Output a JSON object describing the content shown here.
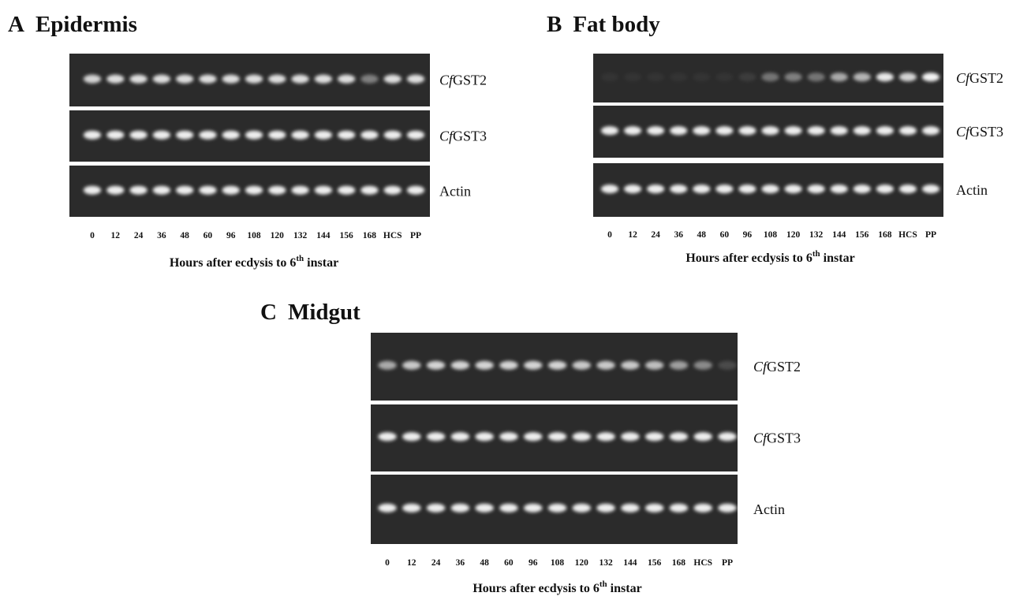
{
  "panels": [
    {
      "letter": "A",
      "title": "Epidermis",
      "rows": [
        {
          "italic": "Cf",
          "rest": "GST2"
        },
        {
          "italic": "Cf",
          "rest": "GST3"
        },
        {
          "italic": "",
          "rest": "Actin"
        }
      ],
      "lanes": [
        "0",
        "12",
        "24",
        "36",
        "48",
        "60",
        "96",
        "108",
        "120",
        "132",
        "144",
        "156",
        "168",
        "HCS",
        "PP"
      ],
      "caption": {
        "before": "Hours after ecdysis to 6",
        "sup": "th",
        "after": " instar"
      }
    },
    {
      "letter": "B",
      "title": "Fat body",
      "rows": [
        {
          "italic": "Cf",
          "rest": "GST2"
        },
        {
          "italic": "Cf",
          "rest": "GST3"
        },
        {
          "italic": "",
          "rest": "Actin"
        }
      ],
      "lanes": [
        "0",
        "12",
        "24",
        "36",
        "48",
        "60",
        "96",
        "108",
        "120",
        "132",
        "144",
        "156",
        "168",
        "HCS",
        "PP"
      ],
      "caption": {
        "before": "Hours after ecdysis to 6",
        "sup": "th",
        "after": " instar"
      }
    },
    {
      "letter": "C",
      "title": "Midgut",
      "rows": [
        {
          "italic": "Cf",
          "rest": "GST2"
        },
        {
          "italic": "Cf",
          "rest": "GST3"
        },
        {
          "italic": "",
          "rest": "Actin"
        }
      ],
      "lanes": [
        "0",
        "12",
        "24",
        "36",
        "48",
        "60",
        "96",
        "108",
        "120",
        "132",
        "144",
        "156",
        "168",
        "HCS",
        "PP"
      ],
      "caption": {
        "before": "Hours after ecdysis to 6",
        "sup": "th",
        "after": " instar"
      }
    }
  ]
}
